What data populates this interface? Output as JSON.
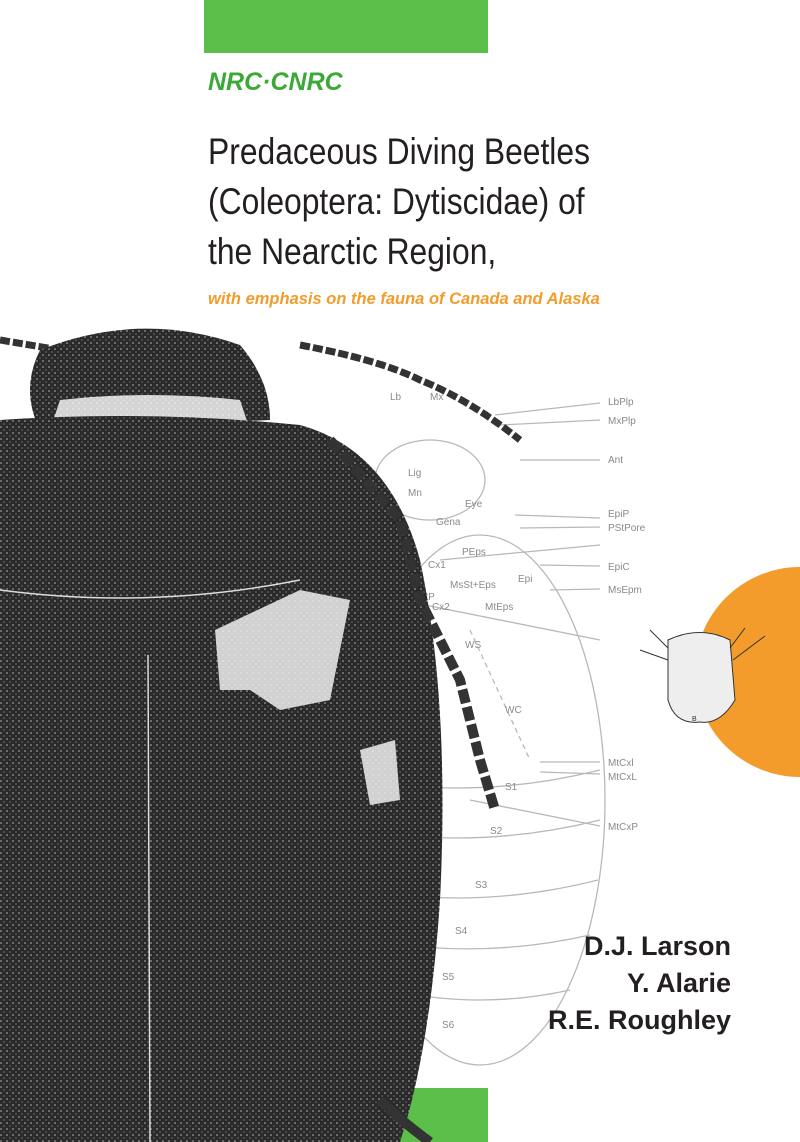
{
  "publisher": {
    "logo": "NRC·CNRC"
  },
  "title": {
    "lines": [
      "Predaceous Diving Beetles",
      "(Coleoptera: Dytiscidae) of",
      "the Nearctic Region,"
    ],
    "subtitle": "with emphasis on the fauna of Canada and Alaska"
  },
  "authors": [
    "D.J. Larson",
    "Y. Alarie",
    "R.E. Roughley"
  ],
  "diagram": {
    "labels": [
      "Lb",
      "Mx",
      "LbPlp",
      "MxPlp",
      "Ant",
      "Lig",
      "Mn",
      "Eye",
      "Gena",
      "EpiP",
      "PStPore",
      "PEps",
      "EpiC",
      "Cx1",
      "MsSt+Eps",
      "Epi",
      "MsEpm",
      "PStP",
      "Cx2",
      "MtEps",
      "WS",
      "WC",
      "MtCxl",
      "MtCxL",
      "S1",
      "S2",
      "MtCxP",
      "S3",
      "S4",
      "S5",
      "S6"
    ],
    "larva_label": "B"
  }
}
